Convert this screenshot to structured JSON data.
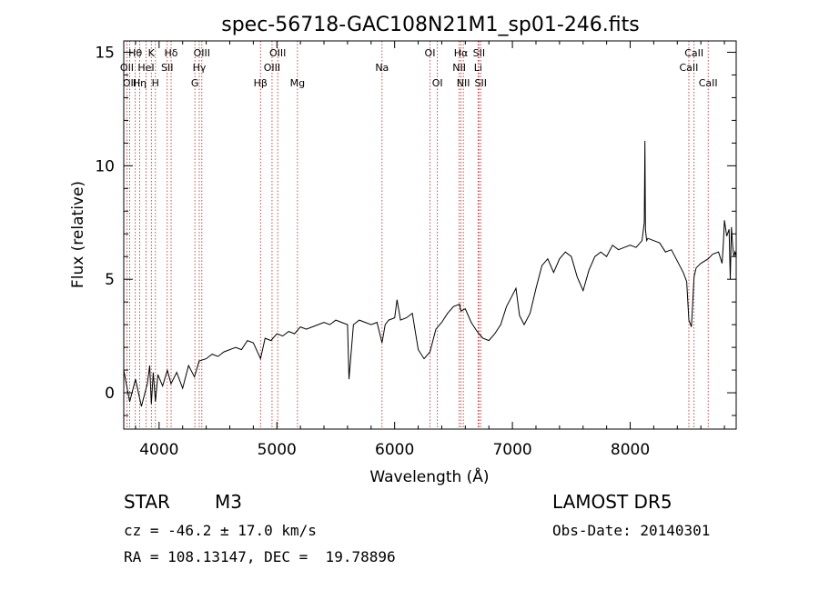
{
  "chart_data": {
    "type": "line",
    "title": "spec-56718-GAC108N21M1_sp01-246.fits",
    "xlabel": "Wavelength (Å)",
    "ylabel": "Flux (relative)",
    "xlim": [
      3700,
      8900
    ],
    "ylim": [
      -1.6,
      15.5
    ],
    "x_ticks": [
      4000,
      5000,
      6000,
      7000,
      8000
    ],
    "y_ticks": [
      0,
      5,
      10,
      15
    ],
    "grid": false,
    "series": [
      {
        "x": [
          3700,
          3750,
          3800,
          3850,
          3900,
          3920,
          3934,
          3950,
          3969,
          3990,
          4030,
          4070,
          4101,
          4150,
          4200,
          4250,
          4300,
          4340,
          4400,
          4450,
          4500,
          4550,
          4600,
          4650,
          4700,
          4750,
          4800,
          4861,
          4900,
          4950,
          5000,
          5050,
          5100,
          5150,
          5200,
          5250,
          5300,
          5350,
          5400,
          5450,
          5500,
          5550,
          5600,
          5612,
          5650,
          5700,
          5750,
          5800,
          5850,
          5893,
          5920,
          5950,
          6000,
          6020,
          6050,
          6100,
          6150,
          6200,
          6250,
          6300,
          6350,
          6400,
          6450,
          6500,
          6550,
          6563,
          6600,
          6650,
          6700,
          6750,
          6800,
          6850,
          6900,
          6950,
          7000,
          7030,
          7060,
          7100,
          7150,
          7200,
          7250,
          7300,
          7350,
          7400,
          7450,
          7500,
          7550,
          7600,
          7650,
          7700,
          7750,
          7800,
          7850,
          7900,
          7950,
          8000,
          8050,
          8100,
          8120,
          8125,
          8130,
          8140,
          8150,
          8200,
          8250,
          8300,
          8350,
          8400,
          8450,
          8480,
          8498,
          8520,
          8542,
          8560,
          8600,
          8662,
          8700,
          8750,
          8780,
          8790,
          8800,
          8820,
          8840,
          8850,
          8860,
          8870,
          8880,
          8890,
          8900
        ],
        "y": [
          1.0,
          -0.4,
          0.6,
          -0.6,
          0.4,
          1.2,
          -0.5,
          0.9,
          -0.4,
          0.8,
          0.3,
          1.0,
          0.4,
          0.9,
          0.2,
          1.2,
          0.7,
          1.4,
          1.5,
          1.7,
          1.6,
          1.8,
          1.9,
          2.0,
          1.9,
          2.3,
          2.2,
          1.5,
          2.4,
          2.3,
          2.6,
          2.5,
          2.7,
          2.6,
          2.9,
          2.8,
          2.9,
          3.0,
          3.1,
          3.0,
          3.2,
          3.1,
          3.0,
          0.6,
          3.0,
          3.2,
          3.1,
          3.0,
          3.1,
          2.2,
          3.0,
          3.2,
          3.3,
          4.1,
          3.2,
          3.3,
          3.5,
          1.9,
          1.5,
          1.8,
          2.8,
          3.1,
          3.5,
          3.8,
          3.9,
          3.6,
          3.7,
          3.1,
          2.7,
          2.4,
          2.3,
          2.6,
          3.0,
          3.8,
          4.3,
          4.6,
          3.4,
          3.0,
          3.5,
          4.6,
          5.6,
          5.9,
          5.3,
          5.9,
          6.2,
          6.0,
          5.1,
          4.5,
          5.4,
          6.0,
          6.2,
          6.0,
          6.5,
          6.3,
          6.4,
          6.5,
          6.4,
          6.7,
          7.5,
          11.1,
          7.2,
          6.7,
          6.8,
          6.7,
          6.6,
          6.2,
          6.3,
          5.8,
          5.3,
          4.9,
          3.2,
          2.9,
          5.1,
          5.5,
          5.7,
          5.9,
          6.1,
          6.2,
          5.7,
          6.5,
          7.6,
          6.9,
          7.2,
          5.0,
          7.3,
          6.5,
          6.0,
          6.2,
          6.0
        ]
      }
    ],
    "lines": [
      {
        "wl": 3727,
        "label": "OII",
        "row": 1
      },
      {
        "wl": 3750,
        "label": "OII",
        "row": 2
      },
      {
        "wl": 3798,
        "label": "Hθ",
        "row": 0
      },
      {
        "wl": 3835,
        "label": "Hη",
        "row": 2
      },
      {
        "wl": 3889,
        "label": "HeI",
        "row": 1
      },
      {
        "wl": 3934,
        "label": "K",
        "row": 0
      },
      {
        "wl": 3969,
        "label": "H",
        "row": 2
      },
      {
        "wl": 4069,
        "label": "SII",
        "row": 1
      },
      {
        "wl": 4102,
        "label": "Hδ",
        "row": 0
      },
      {
        "wl": 4304,
        "label": "G",
        "row": 2
      },
      {
        "wl": 4341,
        "label": "Hγ",
        "row": 1
      },
      {
        "wl": 4363,
        "label": "OIII",
        "row": 0
      },
      {
        "wl": 4861,
        "label": "Hβ",
        "row": 2
      },
      {
        "wl": 4959,
        "label": "OIII",
        "row": 1
      },
      {
        "wl": 5007,
        "label": "OIII",
        "row": 0
      },
      {
        "wl": 5175,
        "label": "Mg",
        "row": 2
      },
      {
        "wl": 5893,
        "label": "Na",
        "row": 1
      },
      {
        "wl": 6300,
        "label": "OI",
        "row": 0
      },
      {
        "wl": 6363,
        "label": "OI",
        "row": 2
      },
      {
        "wl": 6548,
        "label": "NII",
        "row": 1
      },
      {
        "wl": 6563,
        "label": "Hα",
        "row": 0
      },
      {
        "wl": 6583,
        "label": "NII",
        "row": 2
      },
      {
        "wl": 6708,
        "label": "Li",
        "row": 1
      },
      {
        "wl": 6716,
        "label": "SII",
        "row": 0
      },
      {
        "wl": 6731,
        "label": "SII",
        "row": 2
      },
      {
        "wl": 8498,
        "label": "CaII",
        "row": 1
      },
      {
        "wl": 8542,
        "label": "CaII",
        "row": 0
      },
      {
        "wl": 8662,
        "label": "CaII",
        "row": 2
      }
    ]
  },
  "info": {
    "class": "STAR",
    "subclass": "M3",
    "survey": "LAMOST DR5",
    "cz": "cz = -46.2 ± 17.0 km/s",
    "obs_date": "Obs-Date: 20140301",
    "coords": "RA = 108.13147, DEC =  19.78896"
  },
  "colors": {
    "axes": "#000000",
    "spectrum": "#000000",
    "line_markers": "#b22222"
  }
}
